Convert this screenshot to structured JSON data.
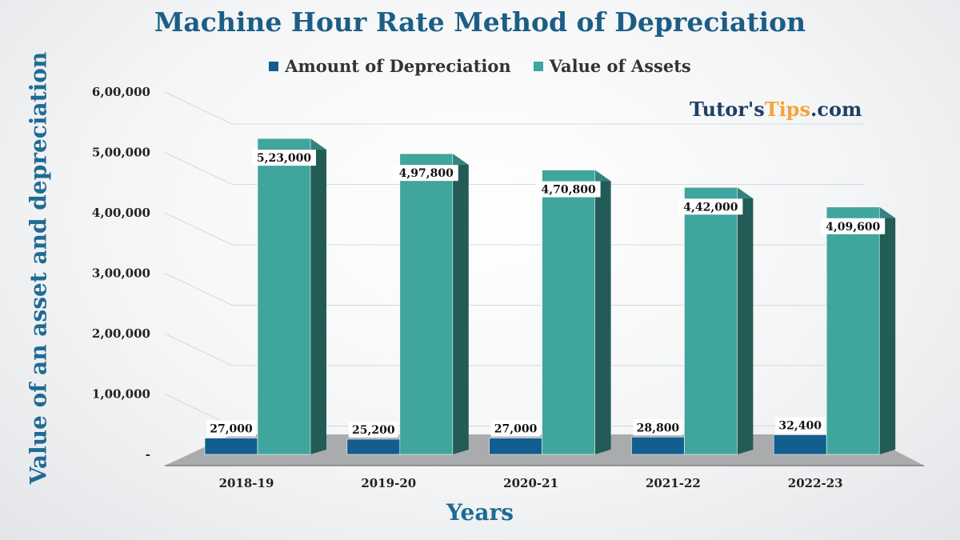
{
  "title": "Machine Hour Rate Method of Depreciation",
  "brand": {
    "part1": "Tutor's",
    "part2": "Tips",
    "part3": ".com",
    "accent_color": "#f7a23a",
    "color": "#1f3f66"
  },
  "chart_data": {
    "type": "bar",
    "title": "Machine Hour Rate Method of Depreciation",
    "xlabel": "Years",
    "ylabel": "Value of an asset and  depreciation",
    "categories": [
      "2018-19",
      "2019-20",
      "2020-21",
      "2021-22",
      "2022-23"
    ],
    "series": [
      {
        "name": "Amount of Depreciation",
        "color": "#135e8f",
        "values": [
          27000,
          25200,
          27000,
          28800,
          32400
        ],
        "labels": [
          "27,000",
          "25,200",
          "27,000",
          "28,800",
          "32,400"
        ]
      },
      {
        "name": "Value of Assets",
        "color": "#3fa59d",
        "values": [
          523000,
          497800,
          470800,
          442000,
          409600
        ],
        "labels": [
          "5,23,000",
          "4,97,800",
          "4,70,800",
          "4,42,000",
          "4,09,600"
        ]
      }
    ],
    "ylim": [
      0,
      600000
    ],
    "yticks": [
      {
        "value": 0,
        "label": "-"
      },
      {
        "value": 100000,
        "label": "1,00,000"
      },
      {
        "value": 200000,
        "label": "2,00,000"
      },
      {
        "value": 300000,
        "label": "3,00,000"
      },
      {
        "value": 400000,
        "label": "4,00,000"
      },
      {
        "value": 500000,
        "label": "5,00,000"
      },
      {
        "value": 600000,
        "label": "6,00,000"
      }
    ],
    "grid": true,
    "legend": "top-center",
    "style": "3d-columns"
  }
}
